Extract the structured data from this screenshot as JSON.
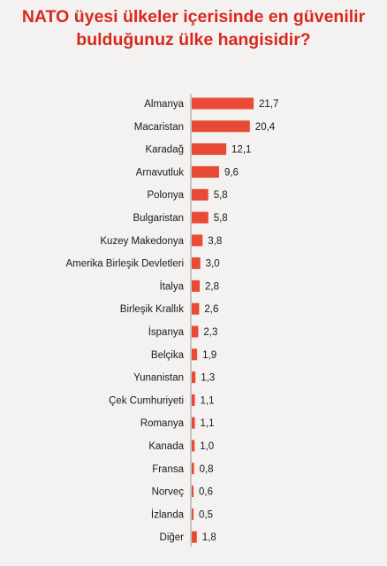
{
  "chart_data": {
    "type": "bar",
    "orientation": "horizontal",
    "title_lines": [
      "NATO üyesi ülkeler içerisinde en güvenilir",
      "bulduğunuz ülke hangisidir?"
    ],
    "categories": [
      "Almanya",
      "Macaristan",
      "Karadağ",
      "Arnavutluk",
      "Polonya",
      "Bulgaristan",
      "Kuzey Makedonya",
      "Amerika Birleşik Devletleri",
      "İtalya",
      "Birleşik Krallık",
      "İspanya",
      "Belçika",
      "Yunanistan",
      "Çek Cumhuriyeti",
      "Romanya",
      "Kanada",
      "Fransa",
      "Norveç",
      "İzlanda",
      "Diğer"
    ],
    "values": [
      21.7,
      20.4,
      12.1,
      9.6,
      5.8,
      5.8,
      3.8,
      3.0,
      2.8,
      2.6,
      2.3,
      1.9,
      1.3,
      1.1,
      1.1,
      1.0,
      0.8,
      0.6,
      0.5,
      1.8
    ],
    "value_labels": [
      "21,7",
      "20,4",
      "12,1",
      "9,6",
      "5,8",
      "5,8",
      "3,8",
      "3,0",
      "2,8",
      "2,6",
      "2,3",
      "1,9",
      "1,3",
      "1,1",
      "1,1",
      "1,0",
      "0,8",
      "0,6",
      "0,5",
      "1,8"
    ],
    "bar_color": "#e94a35",
    "axis_line_color": "#9a9a9a",
    "legend": "none",
    "grid": false
  }
}
